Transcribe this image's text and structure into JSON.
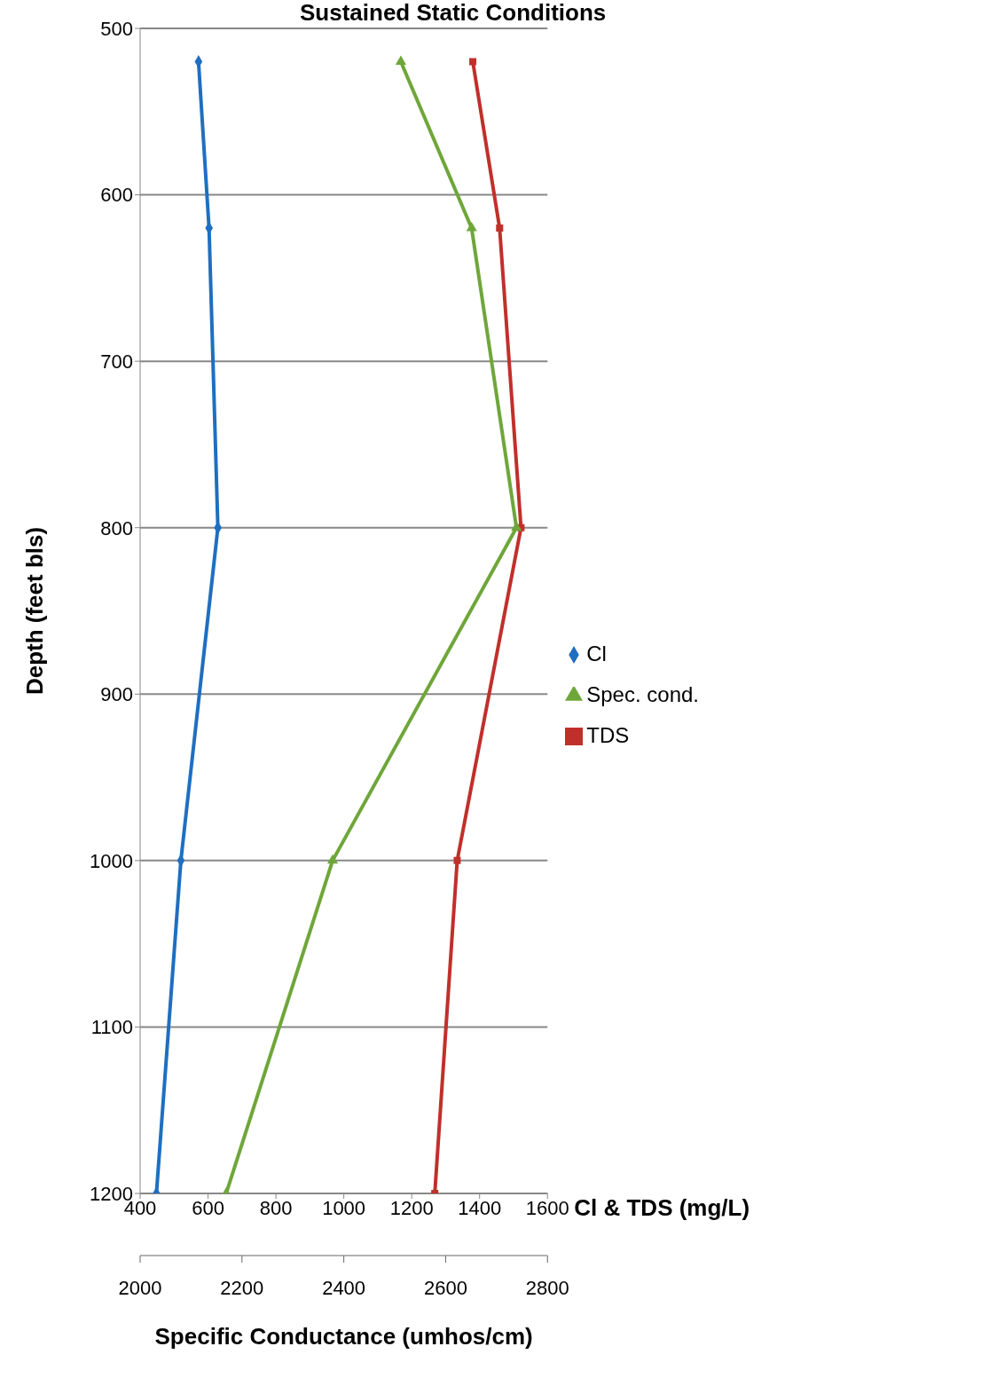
{
  "chart_data": {
    "type": "line",
    "title": "Sustained Static Conditions",
    "orientation": "horizontal",
    "xlabel": "Cl & TDS (mg/L)",
    "x2label": "Specific Conductance (umhos/cm)",
    "ylabel": "Depth (feet bls)",
    "x": [
      520,
      620,
      800,
      1000,
      1200
    ],
    "series": [
      {
        "name": "Cl",
        "color": "#1f6fc0",
        "marker": "diamond",
        "values": [
          572,
          603,
          629,
          520,
          448
        ]
      },
      {
        "name": "TDS",
        "color": "#c0302b",
        "marker": "square",
        "values": [
          1380,
          1459,
          1522,
          1334,
          1268
        ]
      },
      {
        "name": "Spec. cond.",
        "color": "#6fa63a",
        "marker": "triangle",
        "axis": "x2",
        "values": [
          2512,
          2651,
          2739,
          2378,
          2169
        ]
      }
    ],
    "xlim": [
      400,
      1600
    ],
    "xticks": [
      400,
      600,
      800,
      1000,
      1200,
      1400,
      1600
    ],
    "x2lim": [
      2000,
      2800
    ],
    "x2ticks": [
      2000,
      2200,
      2400,
      2600,
      2800
    ],
    "ylim": [
      1200,
      500
    ],
    "yticks": [
      500,
      600,
      700,
      800,
      900,
      1000,
      1100,
      1200
    ],
    "grid": "y",
    "legend": "right"
  }
}
